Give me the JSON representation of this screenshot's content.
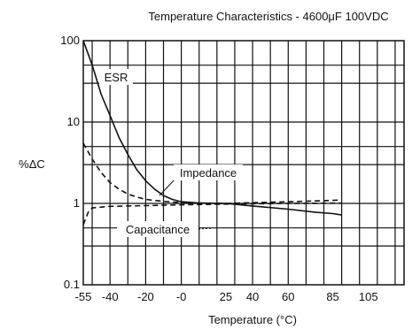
{
  "chart_data": {
    "type": "line",
    "title": "Temperature Characteristics - 4600μF 100VDC",
    "xlabel": "Temperature (°C)",
    "ylabel": "%ΔC",
    "yscale": "log",
    "xlim": [
      -55,
      125
    ],
    "ylim": [
      0.1,
      100
    ],
    "x_ticks": [
      {
        "value": -55,
        "label": "-55"
      },
      {
        "value": -40,
        "label": "-40"
      },
      {
        "value": -20,
        "label": "-20"
      },
      {
        "value": 0,
        "label": "-0"
      },
      {
        "value": 25,
        "label": "25"
      },
      {
        "value": 40,
        "label": "40"
      },
      {
        "value": 60,
        "label": "60"
      },
      {
        "value": 85,
        "label": "85"
      },
      {
        "value": 105,
        "label": "105"
      }
    ],
    "y_ticks": [
      {
        "value": 0.1,
        "label": "0.1"
      },
      {
        "value": 1,
        "label": "1"
      },
      {
        "value": 10,
        "label": "10"
      },
      {
        "value": 100,
        "label": "100"
      }
    ],
    "grid": true,
    "series": [
      {
        "name": "ESR",
        "style": "solid",
        "color": "#111111",
        "points": [
          [
            -55,
            100
          ],
          [
            -50,
            50
          ],
          [
            -45,
            22
          ],
          [
            -40,
            12
          ],
          [
            -35,
            6.5
          ],
          [
            -30,
            4
          ],
          [
            -25,
            2.6
          ],
          [
            -20,
            1.9
          ],
          [
            -15,
            1.5
          ],
          [
            -10,
            1.25
          ],
          [
            -5,
            1.12
          ],
          [
            0,
            1.05
          ],
          [
            10,
            1.01
          ],
          [
            25,
            1.0
          ],
          [
            40,
            0.93
          ],
          [
            60,
            0.85
          ],
          [
            75,
            0.78
          ],
          [
            85,
            0.75
          ],
          [
            90,
            0.72
          ]
        ]
      },
      {
        "name": "Impedance",
        "style": "dashed",
        "color": "#111111",
        "points": [
          [
            -55,
            5.5
          ],
          [
            -50,
            3.5
          ],
          [
            -45,
            2.4
          ],
          [
            -40,
            1.8
          ],
          [
            -35,
            1.5
          ],
          [
            -30,
            1.3
          ],
          [
            -25,
            1.2
          ],
          [
            -20,
            1.12
          ],
          [
            -10,
            1.06
          ],
          [
            0,
            1.02
          ],
          [
            25,
            1.0
          ],
          [
            40,
            1.02
          ],
          [
            60,
            1.05
          ],
          [
            80,
            1.08
          ],
          [
            90,
            1.1
          ]
        ]
      },
      {
        "name": "Capacitance",
        "style": "dashed",
        "color": "#111111",
        "points": [
          [
            -55,
            0.55
          ],
          [
            -52,
            0.8
          ],
          [
            -50,
            0.88
          ],
          [
            -45,
            0.9
          ],
          [
            -40,
            0.92
          ],
          [
            -30,
            0.93
          ],
          [
            -20,
            0.94
          ],
          [
            0,
            0.96
          ],
          [
            25,
            0.98
          ],
          [
            40,
            0.99
          ],
          [
            60,
            1.0
          ],
          [
            90,
            1.01
          ]
        ]
      }
    ]
  }
}
